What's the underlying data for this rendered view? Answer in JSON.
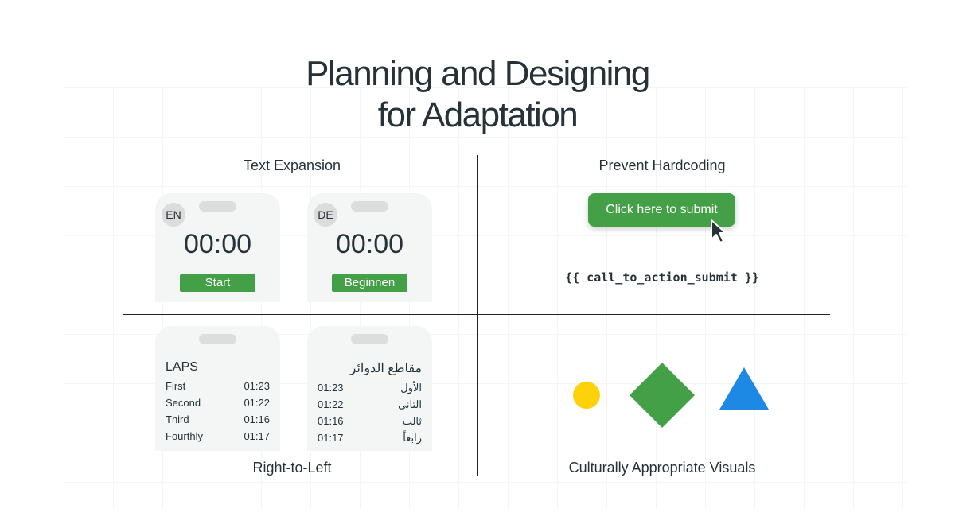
{
  "title": {
    "line1": "Planning and Designing",
    "line2": "for Adaptation"
  },
  "sections": {
    "text_expansion": "Text Expansion",
    "prevent_hardcoding": "Prevent Hardcoding",
    "rtl": "Right-to-Left",
    "visuals": "Culturally Appropriate Visuals"
  },
  "phones": {
    "en": {
      "lang": "EN",
      "time": "00:00",
      "button": "Start"
    },
    "de": {
      "lang": "DE",
      "time": "00:00",
      "button": "Beginnen"
    }
  },
  "laps_ltr": {
    "title": "LAPS",
    "rows": [
      {
        "label": "First",
        "time": "01:23"
      },
      {
        "label": "Second",
        "time": "01:22"
      },
      {
        "label": "Third",
        "time": "01:16"
      },
      {
        "label": "Fourthly",
        "time": "01:17"
      }
    ]
  },
  "laps_rtl": {
    "title": "مقاطع الدوائر",
    "rows": [
      {
        "label": "الأول",
        "time": "01:23"
      },
      {
        "label": "الثاني",
        "time": "01:22"
      },
      {
        "label": "ثالث",
        "time": "01:16"
      },
      {
        "label": "رابعاً",
        "time": "01:17"
      }
    ]
  },
  "hardcoding": {
    "button": "Click here to submit",
    "placeholder": "{{ call_to_action_submit }}"
  },
  "colors": {
    "green": "#43a047",
    "yellow": "#fdd20a",
    "blue": "#1e88e5"
  },
  "icons": [
    "cursor-arrow-icon",
    "circle-shape",
    "diamond-shape",
    "triangle-shape"
  ]
}
